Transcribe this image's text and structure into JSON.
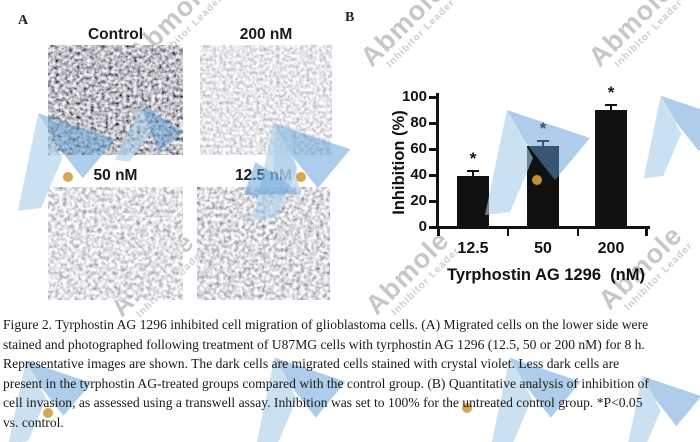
{
  "panels": {
    "a_label": "A",
    "b_label": "B"
  },
  "micrographs": [
    {
      "label": "Control"
    },
    {
      "label": "200 nM"
    },
    {
      "label": "50 nM"
    },
    {
      "label": "12.5 nM"
    }
  ],
  "chart_data": {
    "type": "bar",
    "categories": [
      "12.5",
      "50",
      "200"
    ],
    "values": [
      39,
      62,
      90
    ],
    "errors": [
      4,
      4,
      4
    ],
    "significance": [
      "*",
      "*",
      "*"
    ],
    "title": "",
    "xlabel": "Tyrphostin AG 1296  (nM)",
    "ylabel": "Inhibition (%)",
    "ylim": [
      0,
      100
    ],
    "yticks": [
      0,
      20,
      40,
      60,
      80,
      100
    ],
    "bar_color": "#111111",
    "legend": "none",
    "grid": false
  },
  "caption": {
    "lines": [
      "Figure 2. Tyrphostin AG 1296 inhibited cell migration of glioblastoma cells. (A) Migrated cells on the lower side were",
      "stained and photographed following treatment of U87MG cells with tyrphostin AG 1296 (12.5, 50 or 200 nM) for 8 h.",
      "Representative images are shown. The dark cells are migrated cells stained with crystal violet. Less dark cells are",
      "present in the tyrphostin AG-treated groups compared with the control group. (B) Quantitative analysis of inhibition of",
      "cell invasion, as assessed using a transwell assay. Inhibition was set to 100% for the untreated control group. *P<0.05",
      "vs. control."
    ]
  },
  "watermark": {
    "brand": "Abmole",
    "tagline": "Inhibitor Leader",
    "text_color": "#9b9b9b",
    "triangle_light": "#a9cde9",
    "triangle_medium": "#5b9bd5",
    "dot_color": "#cf9f3e"
  }
}
